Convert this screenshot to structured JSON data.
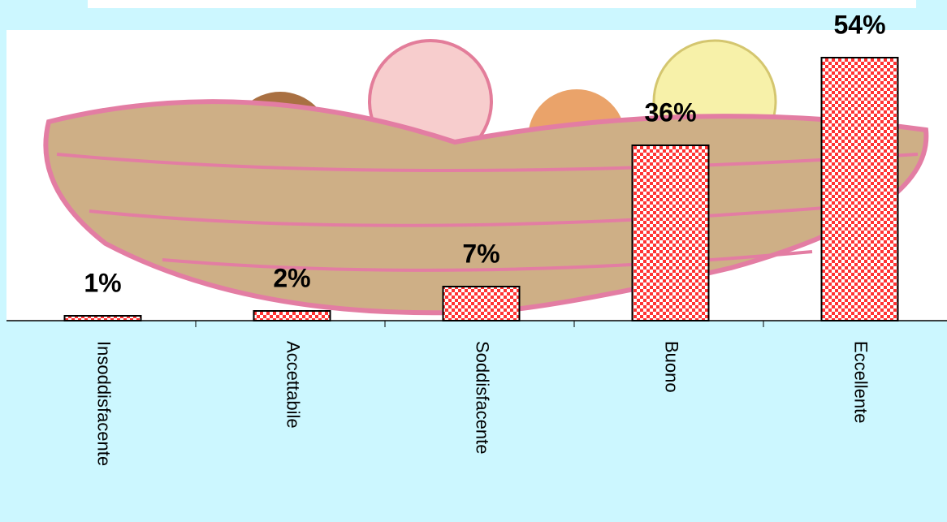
{
  "chart_data": {
    "type": "bar",
    "categories": [
      "Insoddisfacente",
      "Accettabile",
      "Soddisfacente",
      "Buono",
      "Eccellente"
    ],
    "values": [
      1,
      2,
      7,
      36,
      54
    ],
    "value_labels": [
      "1%",
      "2%",
      "7%",
      "36%",
      "54%"
    ],
    "color": "#ff3333"
  }
}
